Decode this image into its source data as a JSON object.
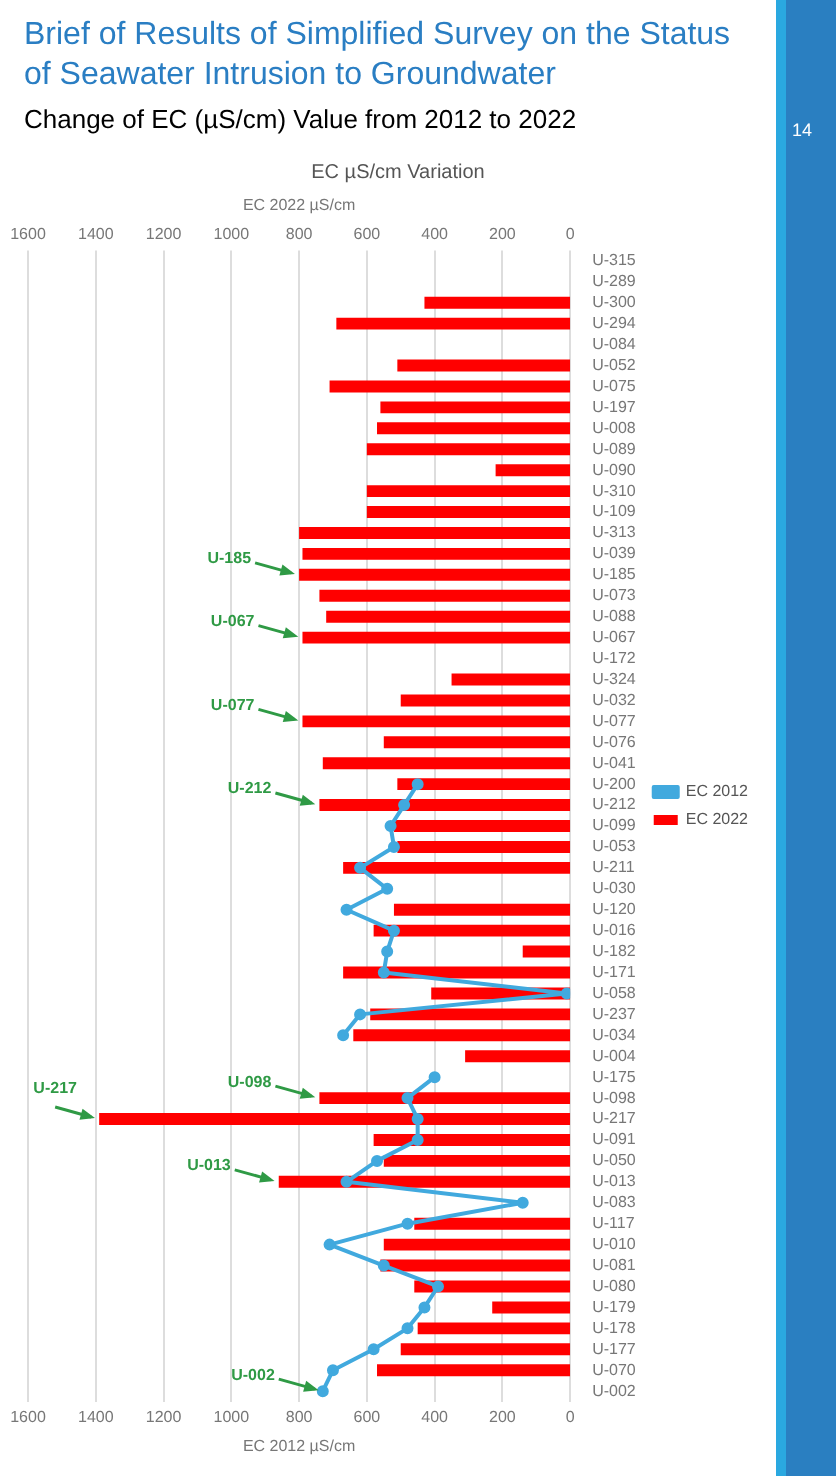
{
  "chart_data": {
    "type": "bar",
    "orientation": "horizontal",
    "title": "EC µS/cm Variation",
    "xlabel": "EC 2012 µS/cm",
    "x2label": "EC 2022 µS/cm",
    "categories": [
      "U-315",
      "U-289",
      "U-300",
      "U-294",
      "U-084",
      "U-052",
      "U-075",
      "U-197",
      "U-008",
      "U-089",
      "U-090",
      "U-310",
      "U-109",
      "U-313",
      "U-039",
      "U-185",
      "U-073",
      "U-088",
      "U-067",
      "U-172",
      "U-324",
      "U-032",
      "U-077",
      "U-076",
      "U-041",
      "U-200",
      "U-212",
      "U-099",
      "U-053",
      "U-211",
      "U-030",
      "U-120",
      "U-016",
      "U-182",
      "U-171",
      "U-058",
      "U-237",
      "U-034",
      "U-004",
      "U-175",
      "U-098",
      "U-217",
      "U-091",
      "U-050",
      "U-013",
      "U-083",
      "U-117",
      "U-010",
      "U-081",
      "U-080",
      "U-179",
      "U-178",
      "U-177",
      "U-070",
      "U-002"
    ],
    "series": [
      {
        "name": "EC 2022",
        "axis": "x2",
        "color": "#ff0000",
        "values": [
          null,
          null,
          430,
          690,
          null,
          510,
          710,
          560,
          570,
          600,
          220,
          600,
          600,
          800,
          790,
          800,
          740,
          720,
          790,
          null,
          350,
          500,
          790,
          550,
          730,
          510,
          740,
          520,
          510,
          670,
          null,
          520,
          580,
          140,
          670,
          410,
          590,
          640,
          310,
          null,
          740,
          1390,
          580,
          550,
          860,
          null,
          460,
          550,
          560,
          460,
          230,
          450,
          500,
          570,
          null
        ]
      },
      {
        "name": "EC 2012",
        "type": "line",
        "color": "#41a9de",
        "values": [
          null,
          null,
          null,
          null,
          null,
          null,
          null,
          null,
          null,
          null,
          null,
          null,
          null,
          null,
          null,
          null,
          null,
          null,
          null,
          null,
          null,
          null,
          null,
          null,
          null,
          450,
          490,
          530,
          520,
          620,
          540,
          660,
          520,
          540,
          550,
          10,
          620,
          670,
          null,
          400,
          480,
          450,
          450,
          570,
          660,
          140,
          480,
          710,
          550,
          390,
          430,
          480,
          580,
          700,
          730
        ]
      }
    ],
    "xlim": [
      1600,
      0
    ],
    "xticks": [
      0,
      200,
      400,
      600,
      800,
      1000,
      1200,
      1400,
      1600
    ],
    "x2lim": [
      1600,
      0
    ],
    "x2ticks": [
      0,
      200,
      400,
      600,
      800,
      1000,
      1200,
      1400,
      1600
    ],
    "grid": "x",
    "legend": "right",
    "marker": "circle",
    "annotations": [
      "Brief of Results of Simplified Survey on the Status of Seawater Intrusion to Groundwater",
      "Change of EC (µS/cm) Value from 2012 to 2022",
      "14",
      {
        "text": "U-002",
        "x": 730,
        "y": "U-002"
      },
      {
        "text": "U-013",
        "x": 860,
        "y": "U-013"
      },
      {
        "text": "U-217",
        "x": 1390,
        "y": "U-217"
      },
      {
        "text": "U-098",
        "x": 740,
        "y": "U-098"
      },
      {
        "text": "U-212",
        "x": 740,
        "y": "U-212"
      },
      {
        "text": "U-077",
        "x": 790,
        "y": "U-077"
      },
      {
        "text": "U-067",
        "x": 790,
        "y": "U-067"
      },
      {
        "text": "U-185",
        "x": 800,
        "y": "U-185"
      }
    ]
  }
}
